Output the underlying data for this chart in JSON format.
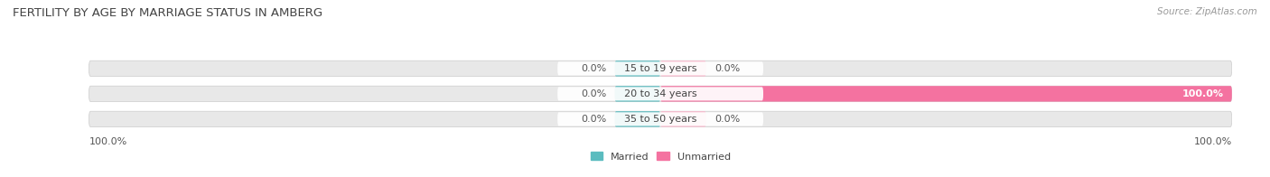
{
  "title": "FERTILITY BY AGE BY MARRIAGE STATUS IN AMBERG",
  "source": "Source: ZipAtlas.com",
  "categories": [
    "15 to 19 years",
    "20 to 34 years",
    "35 to 50 years"
  ],
  "married_pct": [
    0.0,
    0.0,
    0.0
  ],
  "unmarried_pct": [
    0.0,
    100.0,
    0.0
  ],
  "married_color": "#5bbcbf",
  "unmarried_color": "#f472a0",
  "unmarried_light_color": "#f9b8cc",
  "bar_bg_color": "#e8e8e8",
  "bar_bg_shadow_color": "#d0d0d0",
  "title_fontsize": 9.5,
  "label_fontsize": 8,
  "value_fontsize": 8,
  "source_fontsize": 7.5,
  "legend_fontsize": 8,
  "bottom_left_label": "100.0%",
  "bottom_right_label": "100.0%"
}
